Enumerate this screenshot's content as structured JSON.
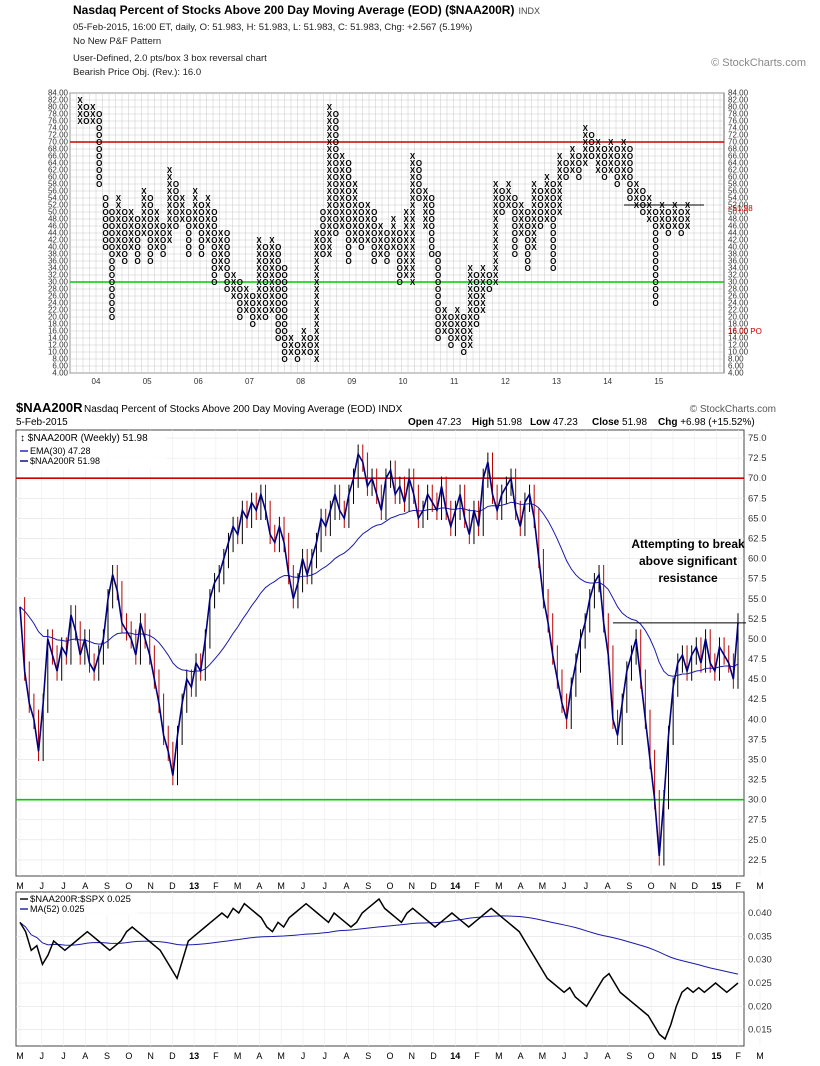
{
  "header": {
    "title": "Nasdaq Percent of Stocks Above 200 Day Moving Average (EOD) ($NAA200R)",
    "exchange": "INDX",
    "line1": "05-Feb-2015, 16:00 ET, daily, O: 51.983, H: 51.983, L: 51.983, C: 51.983, Chg: +2.567 (5.19%)",
    "line2": "No New P&F Pattern",
    "line3": "User-Defined, 2.0 pts/box 3 box reversal chart",
    "line4": "Bearish Price Obj. (Rev.): 16.0",
    "copyright": "© StockCharts.com"
  },
  "lower_header": {
    "symbol": "$NAA200R",
    "name": "Nasdaq Percent of Stocks Above 200 Day Moving Average (EOD)",
    "exchange": "INDX",
    "copyright": "© StockCharts.com",
    "date": "5-Feb-2015",
    "open_label": "Open",
    "open": "47.23",
    "high_label": "High",
    "high": "51.98",
    "low_label": "Low",
    "low": "47.23",
    "close_label": "Close",
    "close": "51.98",
    "chg_label": "Chg",
    "chg": "+6.98 (+15.52%)"
  },
  "colors": {
    "resistance": "#cc0000",
    "support": "#00cc00",
    "price": "#000080",
    "ema": "#1a1aaa",
    "bar_up": "#000000",
    "bar_down": "#bb0000",
    "grid": "#c8c8c8"
  },
  "chart_data": [
    {
      "type": "point-and-figure",
      "box_size": 2,
      "reversal": 3,
      "ylim": [
        4,
        84
      ],
      "yticks": [
        "4.00",
        "6.00",
        "8.00",
        "10.00",
        "12.00",
        "14.00",
        "16.00",
        "18.00",
        "20.00",
        "22.00",
        "24.00",
        "26.00",
        "28.00",
        "30.00",
        "32.00",
        "34.00",
        "36.00",
        "38.00",
        "40.00",
        "42.00",
        "44.00",
        "46.00",
        "48.00",
        "50.00",
        "52.00",
        "54.00",
        "56.00",
        "58.00",
        "60.00",
        "62.00",
        "64.00",
        "66.00",
        "68.00",
        "70.00",
        "72.00",
        "74.00",
        "76.00",
        "78.00",
        "80.00",
        "82.00",
        "84.00"
      ],
      "x_labels": [
        "04",
        "05",
        "06",
        "07",
        "08",
        "09",
        "10",
        "11",
        "12",
        "13",
        "14",
        "15"
      ],
      "horizontal_lines": [
        70,
        30
      ],
      "current_value_label": "<51.98",
      "price_objective_label": "16.00 PO",
      "columns": [
        [
          76,
          82,
          "X"
        ],
        [
          76,
          80,
          "O"
        ],
        [
          76,
          80,
          "X"
        ],
        [
          58,
          78,
          "O"
        ],
        [
          40,
          54,
          "O"
        ],
        [
          20,
          50,
          "O"
        ],
        [
          38,
          54,
          "X"
        ],
        [
          36,
          50,
          "O"
        ],
        [
          40,
          50,
          "X"
        ],
        [
          36,
          48,
          "O"
        ],
        [
          44,
          56,
          "X"
        ],
        [
          36,
          54,
          "O"
        ],
        [
          40,
          50,
          "X"
        ],
        [
          38,
          46,
          "O"
        ],
        [
          42,
          62,
          "X"
        ],
        [
          46,
          58,
          "O"
        ],
        [
          48,
          54,
          "X"
        ],
        [
          38,
          50,
          "O"
        ],
        [
          46,
          56,
          "X"
        ],
        [
          38,
          52,
          "O"
        ],
        [
          42,
          54,
          "X"
        ],
        [
          30,
          50,
          "O"
        ],
        [
          34,
          44,
          "X"
        ],
        [
          28,
          44,
          "O"
        ],
        [
          26,
          32,
          "X"
        ],
        [
          20,
          30,
          "O"
        ],
        [
          22,
          28,
          "X"
        ],
        [
          18,
          26,
          "O"
        ],
        [
          20,
          42,
          "X"
        ],
        [
          20,
          40,
          "O"
        ],
        [
          22,
          42,
          "X"
        ],
        [
          14,
          40,
          "O"
        ],
        [
          8,
          34,
          "O"
        ],
        [
          10,
          14,
          "X"
        ],
        [
          8,
          12,
          "O"
        ],
        [
          10,
          16,
          "X"
        ],
        [
          10,
          14,
          "O"
        ],
        [
          8,
          44,
          "X"
        ],
        [
          38,
          50,
          "O"
        ],
        [
          38,
          80,
          "X"
        ],
        [
          44,
          78,
          "O"
        ],
        [
          46,
          66,
          "X"
        ],
        [
          36,
          64,
          "O"
        ],
        [
          42,
          58,
          "X"
        ],
        [
          40,
          52,
          "O"
        ],
        [
          42,
          52,
          "X"
        ],
        [
          36,
          50,
          "O"
        ],
        [
          38,
          46,
          "X"
        ],
        [
          36,
          44,
          "O"
        ],
        [
          40,
          48,
          "X"
        ],
        [
          30,
          44,
          "O"
        ],
        [
          32,
          50,
          "X"
        ],
        [
          30,
          66,
          "X"
        ],
        [
          54,
          64,
          "O"
        ],
        [
          46,
          56,
          "X"
        ],
        [
          38,
          54,
          "O"
        ],
        [
          14,
          38,
          "O"
        ],
        [
          16,
          22,
          "X"
        ],
        [
          12,
          20,
          "O"
        ],
        [
          14,
          22,
          "X"
        ],
        [
          10,
          20,
          "O"
        ],
        [
          12,
          34,
          "X"
        ],
        [
          18,
          32,
          "O"
        ],
        [
          22,
          34,
          "X"
        ],
        [
          28,
          32,
          "O"
        ],
        [
          30,
          58,
          "X"
        ],
        [
          50,
          56,
          "O"
        ],
        [
          52,
          58,
          "X"
        ],
        [
          38,
          54,
          "O"
        ],
        [
          44,
          52,
          "X"
        ],
        [
          34,
          50,
          "O"
        ],
        [
          40,
          58,
          "X"
        ],
        [
          46,
          56,
          "O"
        ],
        [
          48,
          60,
          "X"
        ],
        [
          34,
          58,
          "O"
        ],
        [
          50,
          66,
          "X"
        ],
        [
          60,
          64,
          "O"
        ],
        [
          62,
          68,
          "X"
        ],
        [
          60,
          66,
          "O"
        ],
        [
          64,
          74,
          "X"
        ],
        [
          66,
          72,
          "O"
        ],
        [
          62,
          70,
          "X"
        ],
        [
          60,
          68,
          "O"
        ],
        [
          62,
          70,
          "X"
        ],
        [
          58,
          68,
          "O"
        ],
        [
          60,
          70,
          "X"
        ],
        [
          54,
          68,
          "O"
        ],
        [
          52,
          58,
          "X"
        ],
        [
          50,
          56,
          "O"
        ],
        [
          48,
          54,
          "X"
        ],
        [
          24,
          50,
          "O"
        ],
        [
          46,
          52,
          "X"
        ],
        [
          44,
          50,
          "O"
        ],
        [
          46,
          52,
          "X"
        ],
        [
          44,
          50,
          "O"
        ],
        [
          46,
          52,
          "X"
        ]
      ]
    },
    {
      "type": "ohlc",
      "title": "$NAA200R (Weekly) 51.98",
      "series": [
        {
          "name": "EMA(30) 47.28"
        },
        {
          "name": "$NAA200R 51.98"
        }
      ],
      "y_label": "",
      "ylim": [
        20.5,
        76
      ],
      "yticks": [
        22.5,
        25.0,
        27.5,
        30.0,
        32.5,
        35.0,
        37.5,
        40.0,
        42.5,
        45.0,
        47.5,
        50.0,
        52.5,
        55.0,
        57.5,
        60.0,
        62.5,
        65.0,
        67.5,
        70.0,
        72.5,
        75.0
      ],
      "horizontal_lines": [
        70,
        30
      ],
      "resistance_label_lines": [
        "Attempting to break",
        "above significant",
        "resistance"
      ],
      "x_ticks": [
        "M",
        "J",
        "J",
        "A",
        "S",
        "O",
        "N",
        "D",
        "13",
        "F",
        "M",
        "A",
        "M",
        "J",
        "J",
        "A",
        "S",
        "O",
        "N",
        "D",
        "14",
        "F",
        "M",
        "A",
        "M",
        "J",
        "J",
        "A",
        "S",
        "O",
        "N",
        "D",
        "15",
        "F",
        "M"
      ],
      "close": [
        54,
        46,
        42,
        40,
        36,
        42,
        50,
        48,
        46,
        49,
        48,
        53,
        51,
        48,
        50,
        47,
        46,
        48,
        50,
        55,
        58,
        56,
        52,
        51,
        50,
        48,
        52,
        50,
        48,
        45,
        42,
        38,
        36,
        33,
        38,
        42,
        45,
        44,
        47,
        46,
        50,
        55,
        57,
        58,
        60,
        62,
        64,
        63,
        66,
        65,
        67,
        66,
        68,
        66,
        63,
        62,
        64,
        62,
        58,
        55,
        57,
        60,
        58,
        60,
        62,
        65,
        64,
        66,
        68,
        66,
        65,
        68,
        70,
        73,
        72,
        69,
        70,
        68,
        66,
        70,
        71,
        68,
        69,
        67,
        70,
        68,
        65,
        66,
        68,
        67,
        66,
        69,
        66,
        64,
        66,
        68,
        65,
        63,
        66,
        64,
        70,
        72,
        68,
        66,
        68,
        69,
        70,
        66,
        64,
        67,
        68,
        65,
        60,
        55,
        52,
        48,
        45,
        42,
        40,
        44,
        47,
        50,
        52,
        55,
        57,
        58,
        52,
        48,
        40,
        38,
        42,
        46,
        48,
        50,
        45,
        40,
        35,
        30,
        23,
        30,
        38,
        44,
        47,
        48,
        46,
        48,
        49,
        47,
        50,
        47,
        46,
        49,
        48,
        47,
        45,
        52
      ]
    },
    {
      "type": "line",
      "title": "$NAA200R:$SPX 0.025",
      "series": [
        {
          "name": "MA(52) 0.025"
        }
      ],
      "ylim": [
        0.0115,
        0.0445
      ],
      "yticks": [
        "0.015",
        "0.020",
        "0.025",
        "0.030",
        "0.035",
        "0.040"
      ],
      "x_ticks": [
        "M",
        "J",
        "J",
        "A",
        "S",
        "O",
        "N",
        "D",
        "13",
        "F",
        "M",
        "A",
        "M",
        "J",
        "J",
        "A",
        "S",
        "O",
        "N",
        "D",
        "14",
        "F",
        "M",
        "A",
        "M",
        "J",
        "J",
        "A",
        "S",
        "O",
        "N",
        "D",
        "15",
        "F",
        "M"
      ],
      "values": [
        0.038,
        0.036,
        0.032,
        0.033,
        0.029,
        0.031,
        0.034,
        0.033,
        0.032,
        0.033,
        0.034,
        0.035,
        0.036,
        0.035,
        0.034,
        0.033,
        0.032,
        0.033,
        0.034,
        0.036,
        0.037,
        0.036,
        0.035,
        0.034,
        0.033,
        0.032,
        0.03,
        0.028,
        0.026,
        0.03,
        0.034,
        0.035,
        0.036,
        0.037,
        0.038,
        0.039,
        0.04,
        0.039,
        0.041,
        0.04,
        0.042,
        0.041,
        0.04,
        0.039,
        0.037,
        0.036,
        0.038,
        0.037,
        0.039,
        0.04,
        0.041,
        0.042,
        0.041,
        0.04,
        0.039,
        0.038,
        0.04,
        0.039,
        0.038,
        0.037,
        0.038,
        0.04,
        0.041,
        0.042,
        0.043,
        0.041,
        0.04,
        0.039,
        0.038,
        0.04,
        0.041,
        0.04,
        0.039,
        0.038,
        0.037,
        0.038,
        0.039,
        0.04,
        0.039,
        0.038,
        0.037,
        0.038,
        0.039,
        0.04,
        0.041,
        0.04,
        0.039,
        0.038,
        0.037,
        0.036,
        0.034,
        0.032,
        0.03,
        0.028,
        0.026,
        0.025,
        0.024,
        0.023,
        0.024,
        0.022,
        0.021,
        0.02,
        0.022,
        0.024,
        0.026,
        0.027,
        0.025,
        0.023,
        0.022,
        0.021,
        0.02,
        0.019,
        0.018,
        0.016,
        0.014,
        0.013,
        0.016,
        0.02,
        0.023,
        0.024,
        0.023,
        0.024,
        0.023,
        0.024,
        0.025,
        0.024,
        0.023,
        0.024,
        0.025
      ]
    }
  ]
}
